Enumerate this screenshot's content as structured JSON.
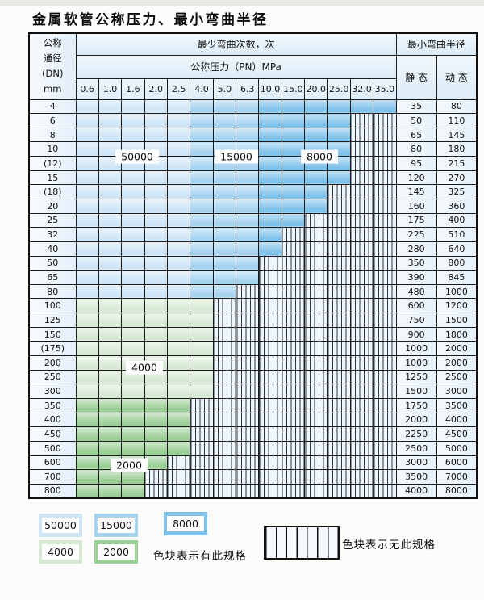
{
  "page": {
    "title": "金属软管公称压力、最小弯曲半径"
  },
  "table": {
    "corner": {
      "lines": [
        "公称",
        "通径",
        "(DN)",
        "mm"
      ]
    },
    "bend_cycles_header": "最少弯曲次数，次",
    "pressure_header": "公称压力（PN）MPa",
    "radius_header": "最小弯曲半径",
    "static_header": "静 态",
    "dynamic_header": "动 态",
    "pressure_cols": [
      "0.6",
      "1.0",
      "1.6",
      "2.0",
      "2.5",
      "4.0",
      "5.0",
      "6.3",
      "10.0",
      "15.0",
      "20.0",
      "25.0",
      "32.0",
      "35.0"
    ],
    "rows": [
      {
        "dn": "4",
        "scheme": "blue",
        "colored_cols": 14,
        "static": "35",
        "dynamic": "80"
      },
      {
        "dn": "6",
        "scheme": "blue",
        "colored_cols": 12,
        "static": "50",
        "dynamic": "110"
      },
      {
        "dn": "8",
        "scheme": "blue",
        "colored_cols": 12,
        "static": "65",
        "dynamic": "145"
      },
      {
        "dn": "10",
        "scheme": "blue",
        "colored_cols": 12,
        "static": "80",
        "dynamic": "180"
      },
      {
        "dn": "(12)",
        "scheme": "blue",
        "colored_cols": 12,
        "static": "95",
        "dynamic": "215"
      },
      {
        "dn": "15",
        "scheme": "blue",
        "colored_cols": 12,
        "static": "120",
        "dynamic": "270"
      },
      {
        "dn": "(18)",
        "scheme": "blue",
        "colored_cols": 11,
        "static": "145",
        "dynamic": "325"
      },
      {
        "dn": "20",
        "scheme": "blue",
        "colored_cols": 11,
        "static": "160",
        "dynamic": "360"
      },
      {
        "dn": "25",
        "scheme": "blue",
        "colored_cols": 10,
        "static": "175",
        "dynamic": "400"
      },
      {
        "dn": "32",
        "scheme": "blue",
        "colored_cols": 9,
        "static": "225",
        "dynamic": "510"
      },
      {
        "dn": "40",
        "scheme": "blue",
        "colored_cols": 9,
        "static": "280",
        "dynamic": "640"
      },
      {
        "dn": "50",
        "scheme": "blue",
        "colored_cols": 8,
        "static": "350",
        "dynamic": "800"
      },
      {
        "dn": "65",
        "scheme": "blue",
        "colored_cols": 8,
        "static": "390",
        "dynamic": "845"
      },
      {
        "dn": "80",
        "scheme": "blue",
        "colored_cols": 7,
        "static": "480",
        "dynamic": "1000"
      },
      {
        "dn": "100",
        "scheme": "green-light",
        "colored_cols": 6,
        "static": "600",
        "dynamic": "1200"
      },
      {
        "dn": "125",
        "scheme": "green-light",
        "colored_cols": 6,
        "static": "750",
        "dynamic": "1500"
      },
      {
        "dn": "150",
        "scheme": "green-light",
        "colored_cols": 6,
        "static": "900",
        "dynamic": "1800"
      },
      {
        "dn": "(175)",
        "scheme": "green-light",
        "colored_cols": 6,
        "static": "1000",
        "dynamic": "2000"
      },
      {
        "dn": "200",
        "scheme": "green-light",
        "colored_cols": 6,
        "static": "1000",
        "dynamic": "2000"
      },
      {
        "dn": "250",
        "scheme": "green-light",
        "colored_cols": 6,
        "static": "1250",
        "dynamic": "2500"
      },
      {
        "dn": "300",
        "scheme": "green-light",
        "colored_cols": 6,
        "static": "1500",
        "dynamic": "3000"
      },
      {
        "dn": "350",
        "scheme": "green-dark",
        "colored_cols": 5,
        "static": "1750",
        "dynamic": "3500"
      },
      {
        "dn": "400",
        "scheme": "green-dark",
        "colored_cols": 5,
        "static": "2000",
        "dynamic": "4000"
      },
      {
        "dn": "450",
        "scheme": "green-dark",
        "colored_cols": 5,
        "static": "2250",
        "dynamic": "4500"
      },
      {
        "dn": "500",
        "scheme": "green-dark",
        "colored_cols": 5,
        "static": "2500",
        "dynamic": "5000"
      },
      {
        "dn": "600",
        "scheme": "green-dark",
        "colored_cols": 4,
        "static": "3000",
        "dynamic": "6000"
      },
      {
        "dn": "700",
        "scheme": "green-dark",
        "colored_cols": 3,
        "static": "3500",
        "dynamic": "7000"
      },
      {
        "dn": "800",
        "scheme": "green-dark",
        "colored_cols": 3,
        "static": "4000",
        "dynamic": "8000"
      }
    ]
  },
  "overlays": {
    "cycles_50000": "50000",
    "cycles_15000": "15000",
    "cycles_8000": "8000",
    "cycles_4000": "4000",
    "cycles_2000": "2000"
  },
  "legend": {
    "chips": [
      {
        "label": "50000"
      },
      {
        "label": "15000"
      },
      {
        "label": "8000"
      },
      {
        "label": "4000"
      },
      {
        "label": "2000"
      }
    ],
    "has_spec_note": "色块表示有此规格",
    "no_spec_note": "色块表示无此规格"
  },
  "colors": {
    "cycles_50000": "#cfe5f6",
    "cycles_15000": "#a5d3f0",
    "cycles_8000": "#7fc2ea",
    "cycles_4000": "#d7e9d4",
    "cycles_2000": "#9ccf97",
    "no_spec_hatch_bg": "#eff6fc",
    "border": "#1b1b1b"
  }
}
